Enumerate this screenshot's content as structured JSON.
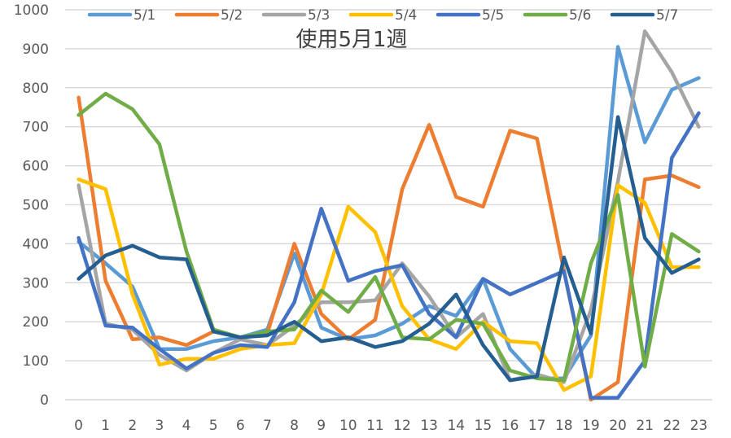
{
  "chart_data": {
    "type": "line",
    "title": "使用5月1週",
    "xlabel": "",
    "ylabel": "",
    "ylim": [
      0,
      1000
    ],
    "yticks": [
      0,
      100,
      200,
      300,
      400,
      500,
      600,
      700,
      800,
      900,
      1000
    ],
    "grid": true,
    "legend": "top",
    "categories": [
      "0",
      "1",
      "2",
      "3",
      "4",
      "5",
      "6",
      "7",
      "8",
      "9",
      "10",
      "11",
      "12",
      "13",
      "14",
      "15",
      "16",
      "17",
      "18",
      "19",
      "20",
      "21",
      "22",
      "23"
    ],
    "series": [
      {
        "name": "5/1",
        "color": "#5B9BD5",
        "values": [
          405,
          350,
          290,
          130,
          130,
          150,
          160,
          180,
          375,
          185,
          155,
          165,
          195,
          240,
          215,
          310,
          130,
          55,
          55,
          165,
          905,
          660,
          795,
          825
        ]
      },
      {
        "name": "5/2",
        "color": "#ED7D31",
        "values": [
          775,
          305,
          155,
          160,
          140,
          175,
          160,
          170,
          400,
          220,
          155,
          205,
          540,
          705,
          520,
          495,
          690,
          670,
          330,
          0,
          45,
          565,
          575,
          545
        ]
      },
      {
        "name": "5/3",
        "color": "#A5A5A5",
        "values": [
          550,
          195,
          180,
          115,
          75,
          120,
          155,
          140,
          190,
          250,
          250,
          255,
          350,
          265,
          160,
          220,
          50,
          65,
          45,
          230,
          560,
          945,
          840,
          700
        ]
      },
      {
        "name": "5/4",
        "color": "#FFC000",
        "values": [
          565,
          540,
          270,
          90,
          105,
          105,
          130,
          140,
          145,
          270,
          495,
          430,
          240,
          155,
          130,
          200,
          150,
          145,
          25,
          60,
          550,
          505,
          340,
          340
        ]
      },
      {
        "name": "5/5",
        "color": "#4472C4",
        "values": [
          415,
          190,
          185,
          130,
          80,
          120,
          140,
          135,
          250,
          490,
          305,
          330,
          345,
          220,
          160,
          310,
          270,
          300,
          330,
          5,
          5,
          100,
          620,
          735
        ]
      },
      {
        "name": "5/6",
        "color": "#70AD47",
        "values": [
          730,
          785,
          745,
          655,
          380,
          180,
          160,
          175,
          180,
          280,
          225,
          315,
          160,
          155,
          205,
          195,
          75,
          55,
          50,
          350,
          525,
          85,
          425,
          380
        ]
      },
      {
        "name": "5/7",
        "color": "#255E91",
        "values": [
          310,
          370,
          395,
          365,
          360,
          175,
          160,
          165,
          200,
          150,
          160,
          135,
          150,
          195,
          270,
          140,
          50,
          60,
          365,
          170,
          725,
          415,
          325,
          360
        ]
      }
    ]
  }
}
